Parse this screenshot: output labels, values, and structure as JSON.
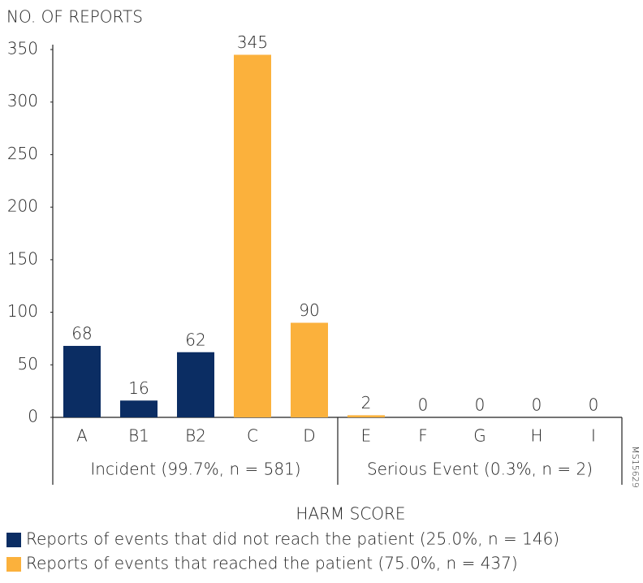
{
  "chart_data": {
    "type": "bar",
    "title": "NO. OF REPORTS",
    "x_label": "HARM SCORE",
    "categories": [
      "A",
      "B1",
      "B2",
      "C",
      "D",
      "E",
      "F",
      "G",
      "H",
      "I"
    ],
    "series": [
      {
        "name": "Reports of events that did not reach the patient (25.0%, n = 146)",
        "color": "#0b2d63",
        "values": [
          68,
          16,
          62,
          null,
          null,
          null,
          null,
          null,
          null,
          null
        ]
      },
      {
        "name": "Reports of events that reached the patient (75.0%, n = 437)",
        "color": "#fbb13c",
        "values": [
          null,
          null,
          null,
          345,
          90,
          2,
          0,
          0,
          0,
          0
        ]
      }
    ],
    "groups": [
      "Incident (99.7%, n = 581)",
      "Serious Event (0.3%, n = 2)"
    ],
    "ylim": [
      0,
      350
    ],
    "yticks": [
      0,
      50,
      100,
      150,
      200,
      250,
      300,
      350
    ],
    "watermark": "MS15629"
  }
}
